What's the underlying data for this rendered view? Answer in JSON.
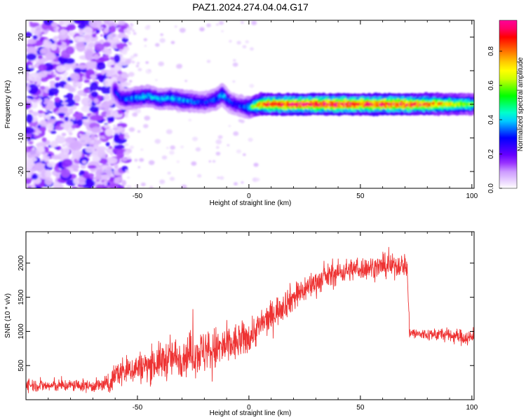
{
  "title": "PAZ1.2024.274.04.04.G17",
  "colorbar": {
    "label": "Normalized spectral amplitude",
    "ticks": [
      "0.0",
      "0.2",
      "0.4",
      "0.6",
      "0.8"
    ],
    "tick_values": [
      0.0,
      0.2,
      0.4,
      0.6,
      0.8
    ],
    "range": [
      0,
      0.98
    ],
    "colors": [
      "#ffffff",
      "#e6ccff",
      "#cc99ff",
      "#9933ff",
      "#6600ff",
      "#3300ff",
      "#0000ff",
      "#0066ff",
      "#00ccff",
      "#00ffcc",
      "#00ff66",
      "#00ff00",
      "#66ff00",
      "#ccff00",
      "#ffff00",
      "#ffcc00",
      "#ff8800",
      "#ff4400",
      "#ff0000",
      "#ff0066",
      "#ff0099"
    ]
  },
  "chart_data": [
    {
      "type": "heatmap",
      "title": "PAZ1.2024.274.04.04.G17",
      "xlabel": "Height of straight line (km)",
      "ylabel": "Frequency (Hz)",
      "xlim": [
        -100,
        101
      ],
      "ylim": [
        -25,
        25
      ],
      "xticks": [
        "-50",
        "0",
        "50",
        "100"
      ],
      "xtick_values": [
        -50,
        0,
        50,
        100
      ],
      "yticks": [
        "20",
        "10",
        "0",
        "-10",
        "-20"
      ],
      "ytick_values": [
        20,
        10,
        0,
        -10,
        -20
      ],
      "grid": false,
      "signal_ridge": {
        "height_km": [
          -60,
          -58,
          -55,
          -50,
          -45,
          -40,
          -35,
          -30,
          -25,
          -20,
          -15,
          -12,
          -10,
          -8,
          -5,
          -2,
          0,
          5,
          10,
          20,
          30,
          40,
          50,
          60,
          70,
          80,
          90,
          100
        ],
        "frequency_hz": [
          4,
          2,
          1.5,
          2,
          2.5,
          1.5,
          1.8,
          1.2,
          0.8,
          0.5,
          1.5,
          3,
          1.5,
          0.5,
          -0.2,
          -0.8,
          -1,
          0,
          0,
          0,
          0,
          0,
          0,
          0,
          0,
          0,
          0,
          0
        ],
        "amplitude": [
          0.3,
          0.3,
          0.35,
          0.4,
          0.4,
          0.4,
          0.4,
          0.4,
          0.35,
          0.3,
          0.35,
          0.4,
          0.35,
          0.3,
          0.3,
          0.35,
          0.45,
          0.8,
          0.9,
          0.95,
          0.95,
          0.95,
          0.9,
          0.95,
          0.9,
          0.85,
          0.7,
          0.6
        ]
      },
      "noise_region_km": [
        -100,
        -55
      ]
    },
    {
      "type": "line",
      "xlabel": "Height of straight line (km)",
      "ylabel": "SNR (10 * v/v)",
      "xlim": [
        -100,
        101
      ],
      "ylim": [
        0,
        2460
      ],
      "xticks": [
        "-50",
        "0",
        "50",
        "100"
      ],
      "xtick_values": [
        -50,
        0,
        50,
        100
      ],
      "yticks": [
        "500",
        "1000",
        "1500",
        "2000"
      ],
      "ytick_values": [
        500,
        1000,
        1500,
        2000
      ],
      "grid": false,
      "series": [
        {
          "color": "#ee3333",
          "x": [
            -100,
            -90,
            -80,
            -70,
            -62,
            -60,
            -55,
            -50,
            -45,
            -40,
            -35,
            -30,
            -25,
            -20,
            -15,
            -10,
            -5,
            0,
            5,
            10,
            15,
            20,
            25,
            30,
            35,
            40,
            45,
            50,
            55,
            60,
            65,
            70,
            71,
            72,
            75,
            80,
            85,
            90,
            95,
            100
          ],
          "y": [
            220,
            200,
            210,
            200,
            230,
            380,
            420,
            470,
            500,
            560,
            600,
            640,
            680,
            700,
            730,
            780,
            840,
            920,
            1080,
            1220,
            1380,
            1500,
            1620,
            1720,
            1800,
            1860,
            1900,
            1920,
            1940,
            1950,
            1960,
            1980,
            1900,
            1000,
            960,
            950,
            960,
            940,
            920,
            900
          ],
          "noise_amplitude": [
            80,
            80,
            80,
            80,
            120,
            180,
            200,
            200,
            220,
            240,
            260,
            260,
            280,
            300,
            300,
            280,
            250,
            220,
            220,
            200,
            200,
            190,
            180,
            170,
            160,
            160,
            150,
            150,
            150,
            150,
            150,
            150,
            150,
            90,
            80,
            80,
            90,
            90,
            100,
            110
          ]
        }
      ]
    }
  ]
}
